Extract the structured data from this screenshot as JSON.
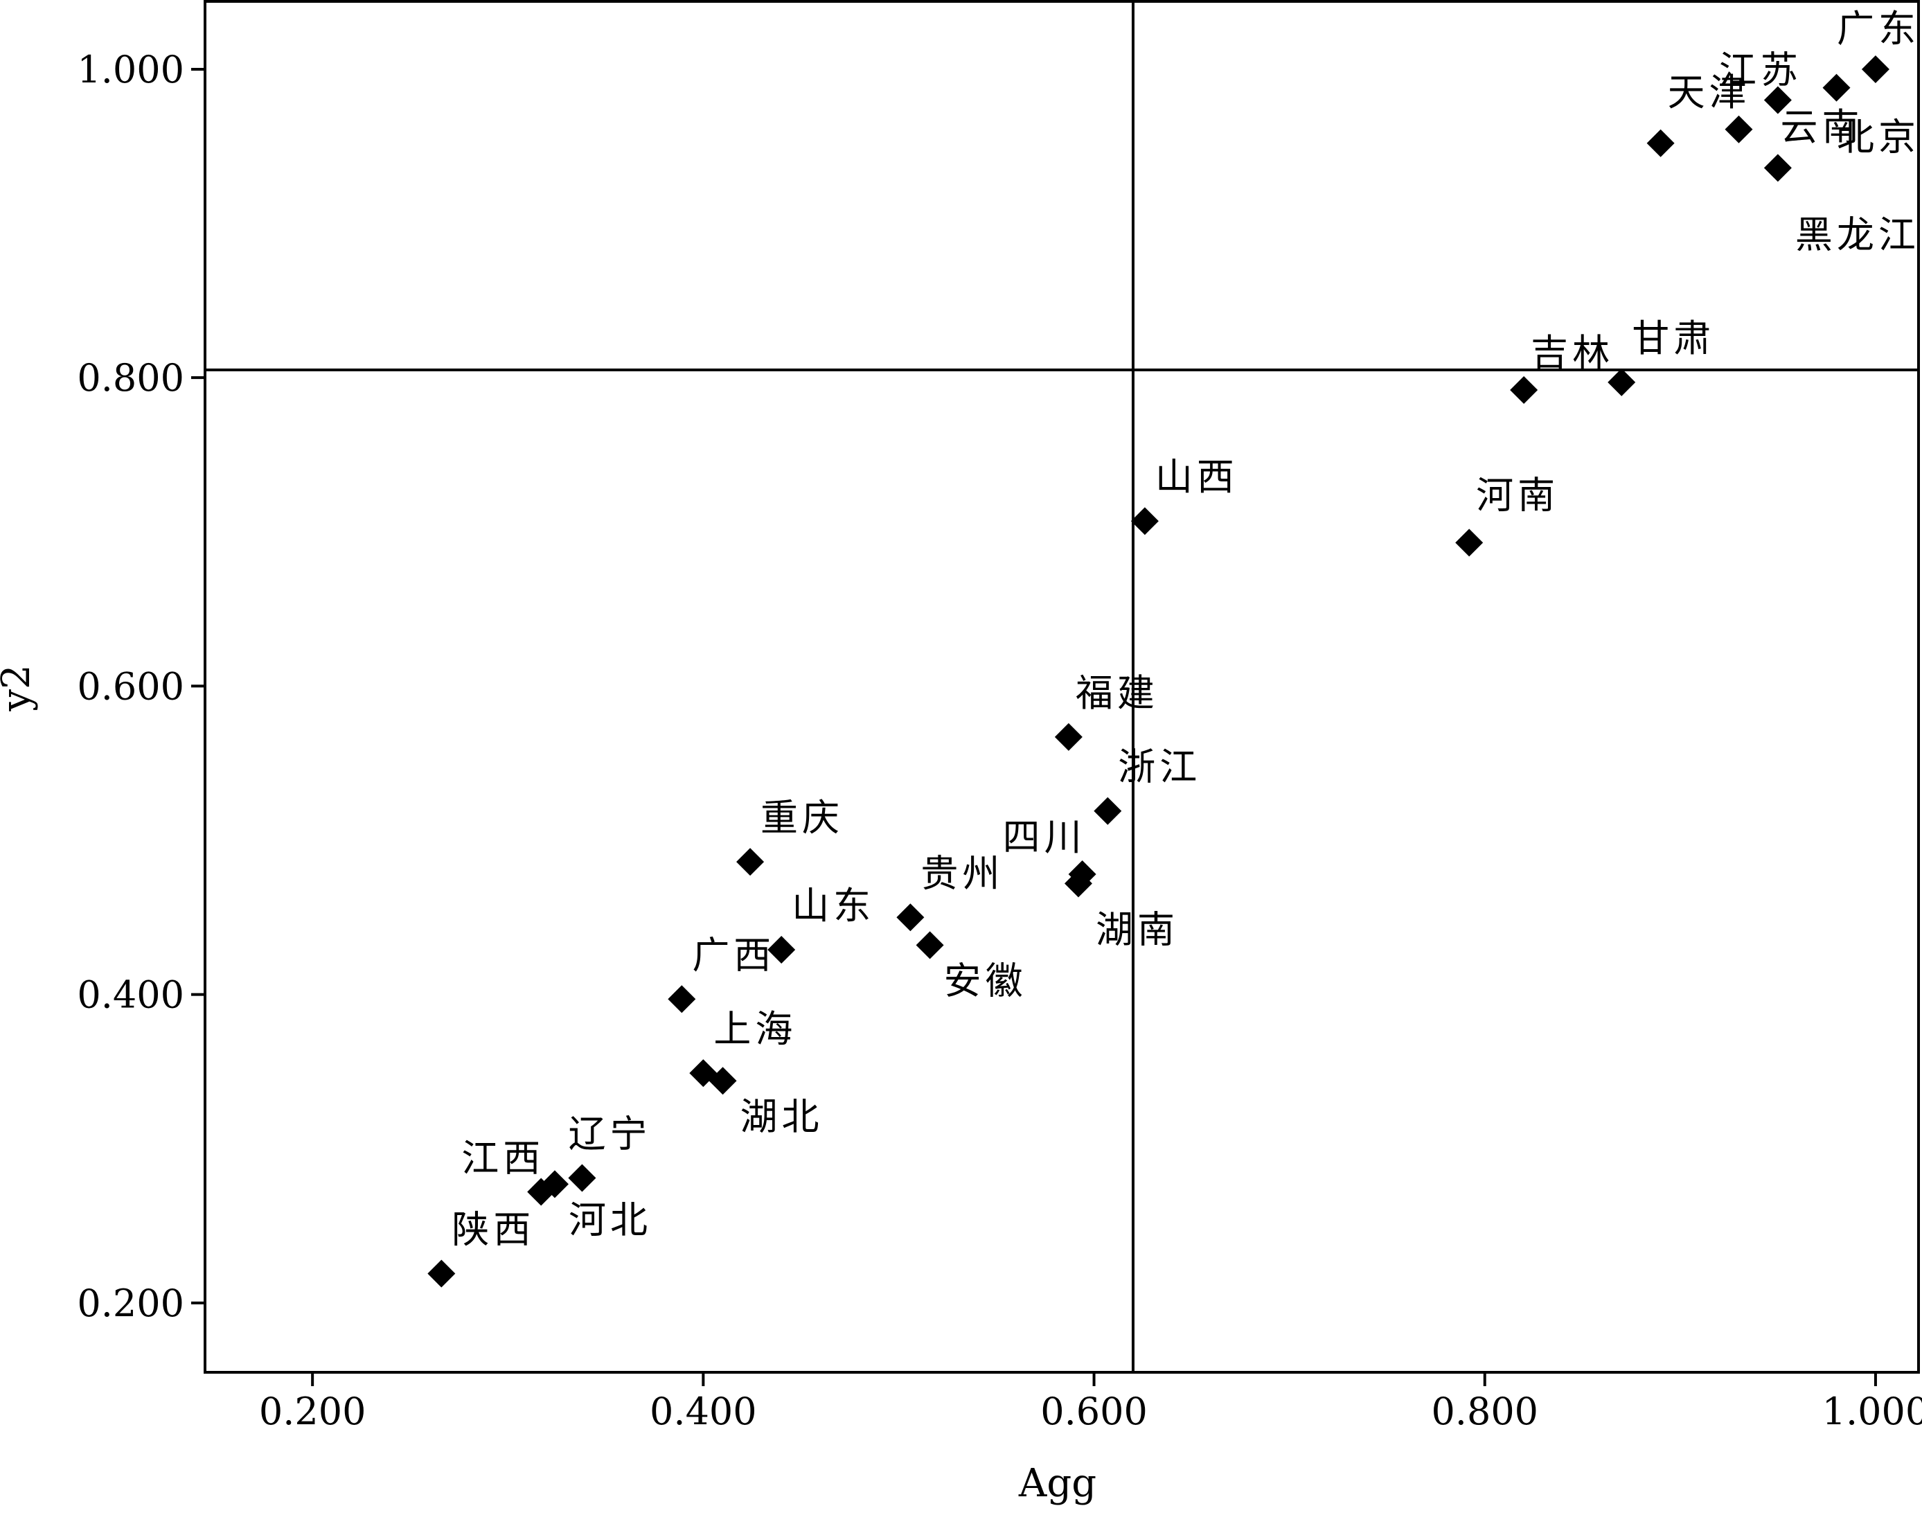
{
  "chart_data": {
    "type": "scatter",
    "title": "",
    "xlabel": "Agg",
    "ylabel": "y2",
    "xlim": [
      0.145,
      1.022
    ],
    "ylim": [
      0.155,
      1.044
    ],
    "x_ticks": [
      0.2,
      0.4,
      0.6,
      0.8,
      1.0
    ],
    "y_ticks": [
      0.2,
      0.4,
      0.6,
      0.8,
      1.0
    ],
    "x_tick_labels": [
      "0.200",
      "0.400",
      "0.600",
      "0.800",
      "1.000"
    ],
    "y_tick_labels": [
      "0.200",
      "0.400",
      "0.600",
      "0.800",
      "1.000"
    ],
    "reference_lines": {
      "x": 0.62,
      "y": 0.805
    },
    "marker": "diamond",
    "grid": false,
    "points": [
      {
        "name": "广东",
        "x": 1.0,
        "y": 1.0
      },
      {
        "name": "北京",
        "x": 0.98,
        "y": 0.988
      },
      {
        "name": "江苏",
        "x": 0.95,
        "y": 0.98
      },
      {
        "name": "云南",
        "x": 0.93,
        "y": 0.961
      },
      {
        "name": "天津",
        "x": 0.89,
        "y": 0.952
      },
      {
        "name": "黑龙江",
        "x": 0.95,
        "y": 0.936
      },
      {
        "name": "甘肃",
        "x": 0.87,
        "y": 0.797
      },
      {
        "name": "吉林",
        "x": 0.82,
        "y": 0.792
      },
      {
        "name": "河南",
        "x": 0.792,
        "y": 0.693
      },
      {
        "name": "山西",
        "x": 0.626,
        "y": 0.707
      },
      {
        "name": "福建",
        "x": 0.587,
        "y": 0.567
      },
      {
        "name": "浙江",
        "x": 0.607,
        "y": 0.519
      },
      {
        "name": "四川",
        "x": 0.594,
        "y": 0.478
      },
      {
        "name": "湖南",
        "x": 0.592,
        "y": 0.472
      },
      {
        "name": "贵州",
        "x": 0.506,
        "y": 0.45
      },
      {
        "name": "安徽",
        "x": 0.516,
        "y": 0.432
      },
      {
        "name": "重庆",
        "x": 0.424,
        "y": 0.486
      },
      {
        "name": "山东",
        "x": 0.44,
        "y": 0.429
      },
      {
        "name": "广西",
        "x": 0.389,
        "y": 0.397
      },
      {
        "name": "上海",
        "x": 0.4,
        "y": 0.349
      },
      {
        "name": "湖北",
        "x": 0.41,
        "y": 0.344
      },
      {
        "name": "辽宁",
        "x": 0.338,
        "y": 0.281
      },
      {
        "name": "河北",
        "x": 0.324,
        "y": 0.277
      },
      {
        "name": "江西",
        "x": 0.317,
        "y": 0.272
      },
      {
        "name": "陕西",
        "x": 0.266,
        "y": 0.219
      }
    ]
  }
}
